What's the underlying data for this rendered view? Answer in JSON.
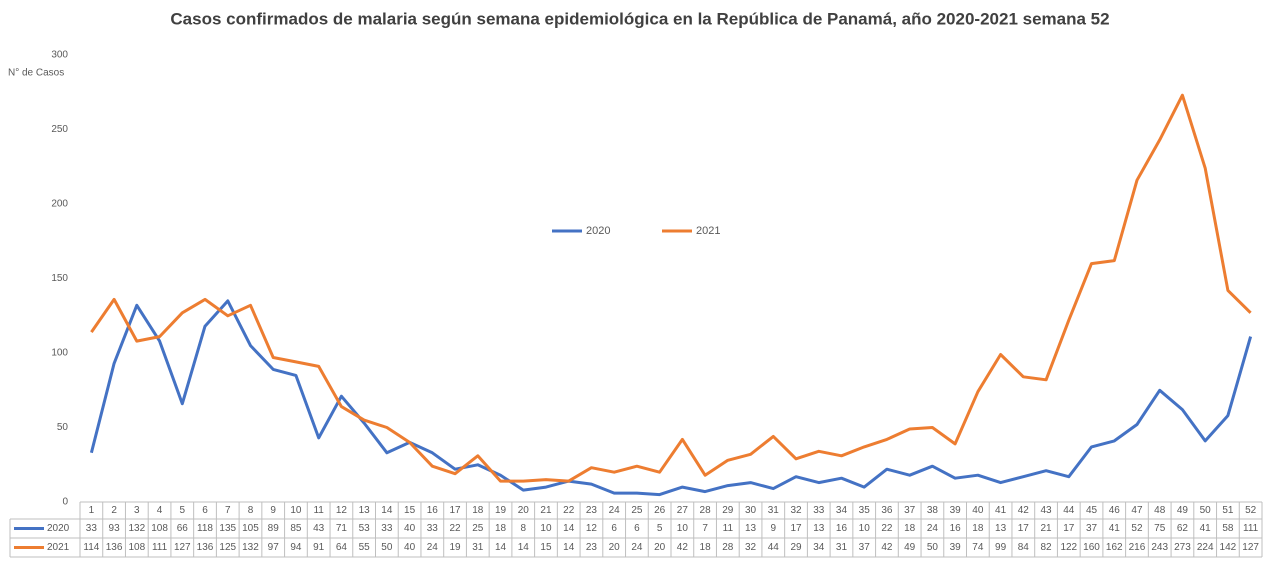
{
  "chart_data": {
    "type": "line",
    "title": "Casos confirmados de malaria según semana epidemiológica en la República de Panamá, año 2020-2021 semana 52",
    "y_label": "N° de Casos",
    "categories": [
      "1",
      "2",
      "3",
      "4",
      "5",
      "6",
      "7",
      "8",
      "9",
      "10",
      "11",
      "12",
      "13",
      "14",
      "15",
      "16",
      "17",
      "18",
      "19",
      "20",
      "21",
      "22",
      "23",
      "24",
      "25",
      "26",
      "27",
      "28",
      "29",
      "30",
      "31",
      "32",
      "33",
      "34",
      "35",
      "36",
      "37",
      "38",
      "39",
      "40",
      "41",
      "42",
      "43",
      "44",
      "45",
      "46",
      "47",
      "48",
      "49",
      "50",
      "51",
      "52"
    ],
    "series": [
      {
        "name": "2020",
        "color": "#4472c4",
        "values": [
          33,
          93,
          132,
          108,
          66,
          118,
          135,
          105,
          89,
          85,
          43,
          71,
          53,
          33,
          40,
          33,
          22,
          25,
          18,
          8,
          10,
          14,
          12,
          6,
          6,
          5,
          10,
          7,
          11,
          13,
          9,
          17,
          13,
          16,
          10,
          22,
          18,
          24,
          16,
          18,
          13,
          17,
          21,
          17,
          37,
          41,
          52,
          75,
          62,
          41,
          58,
          111
        ]
      },
      {
        "name": "2021",
        "color": "#ed7d31",
        "values": [
          114,
          136,
          108,
          111,
          127,
          136,
          125,
          132,
          97,
          94,
          91,
          64,
          55,
          50,
          40,
          24,
          19,
          31,
          14,
          14,
          15,
          14,
          23,
          20,
          24,
          20,
          42,
          18,
          28,
          32,
          44,
          29,
          34,
          31,
          37,
          42,
          49,
          50,
          39,
          74,
          99,
          84,
          82,
          122,
          160,
          162,
          216,
          243,
          273,
          224,
          142,
          127
        ]
      }
    ],
    "ylim": [
      0,
      300
    ],
    "yticks": [
      0,
      50,
      100,
      150,
      200,
      250,
      300
    ],
    "grid": false,
    "legend": "center",
    "data_table": true
  }
}
